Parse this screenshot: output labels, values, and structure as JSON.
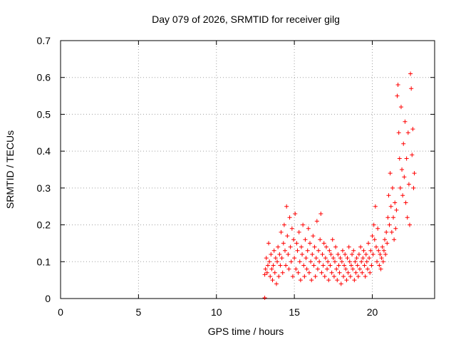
{
  "chart_data": {
    "type": "scatter",
    "title": "Day 079 of 2026, SRMTID for receiver gilg",
    "xlabel": "GPS time / hours",
    "ylabel": "SRMTID / TECUs",
    "xlim": [
      0,
      24
    ],
    "ylim": [
      0,
      0.7
    ],
    "xticks": [
      0,
      5,
      10,
      15,
      20
    ],
    "xtick_labels": [
      "0",
      "5",
      "10",
      "15",
      "20"
    ],
    "yticks": [
      0,
      0.1,
      0.2,
      0.3,
      0.4,
      0.5,
      0.6,
      0.7
    ],
    "ytick_labels": [
      "0",
      "0.1",
      "0.2",
      "0.3",
      "0.4",
      "0.5",
      "0.6",
      "0.7"
    ],
    "grid": true,
    "marker": "plus",
    "color": "#ff0000",
    "series": [
      {
        "name": "SRMTID",
        "x": [
          13.1,
          13.1,
          13.15,
          13.2,
          13.25,
          13.3,
          13.35,
          13.4,
          13.45,
          13.5,
          13.55,
          13.6,
          13.65,
          13.7,
          13.75,
          13.8,
          13.85,
          13.9,
          13.95,
          14.0,
          14.05,
          14.1,
          14.15,
          14.2,
          14.25,
          14.3,
          14.35,
          14.4,
          14.45,
          14.5,
          14.55,
          14.6,
          14.65,
          14.7,
          14.75,
          14.8,
          14.85,
          14.9,
          14.95,
          15.0,
          15.05,
          15.1,
          15.15,
          15.2,
          15.25,
          15.3,
          15.35,
          15.4,
          15.45,
          15.5,
          15.55,
          15.6,
          15.65,
          15.7,
          15.75,
          15.8,
          15.85,
          15.9,
          15.95,
          16.0,
          16.05,
          16.1,
          16.15,
          16.2,
          16.25,
          16.3,
          16.35,
          16.4,
          16.45,
          16.5,
          16.55,
          16.6,
          16.65,
          16.7,
          16.75,
          16.8,
          16.85,
          16.9,
          16.95,
          17.0,
          17.05,
          17.1,
          17.15,
          17.2,
          17.25,
          17.3,
          17.35,
          17.4,
          17.45,
          17.5,
          17.55,
          17.6,
          17.65,
          17.7,
          17.75,
          17.8,
          17.85,
          17.9,
          17.95,
          18.0,
          18.05,
          18.1,
          18.15,
          18.2,
          18.25,
          18.3,
          18.35,
          18.4,
          18.45,
          18.5,
          18.55,
          18.6,
          18.65,
          18.7,
          18.75,
          18.8,
          18.85,
          18.9,
          18.95,
          19.0,
          19.05,
          19.1,
          19.15,
          19.2,
          19.25,
          19.3,
          19.35,
          19.4,
          19.45,
          19.5,
          19.55,
          19.6,
          19.65,
          19.7,
          19.75,
          19.8,
          19.85,
          19.9,
          19.95,
          20.0,
          20.05,
          20.1,
          20.15,
          20.2,
          20.25,
          20.3,
          20.35,
          20.4,
          20.45,
          20.5,
          20.55,
          20.6,
          20.65,
          20.7,
          20.75,
          20.8,
          20.85,
          20.9,
          20.95,
          21.0,
          21.05,
          21.1,
          21.15,
          21.2,
          21.25,
          21.3,
          21.35,
          21.4,
          21.45,
          21.5,
          21.55,
          21.6,
          21.65,
          21.7,
          21.75,
          21.8,
          21.85,
          21.9,
          21.95,
          22.0,
          22.05,
          22.1,
          22.15,
          22.2,
          22.25,
          22.3,
          22.35,
          22.4,
          22.45,
          22.5,
          22.55,
          22.6,
          22.65,
          22.7
        ],
        "y": [
          0.002,
          0.065,
          0.08,
          0.11,
          0.07,
          0.09,
          0.15,
          0.1,
          0.06,
          0.12,
          0.08,
          0.05,
          0.09,
          0.13,
          0.07,
          0.11,
          0.04,
          0.1,
          0.14,
          0.06,
          0.12,
          0.09,
          0.18,
          0.11,
          0.07,
          0.15,
          0.2,
          0.13,
          0.09,
          0.25,
          0.17,
          0.12,
          0.08,
          0.22,
          0.14,
          0.1,
          0.19,
          0.06,
          0.16,
          0.11,
          0.23,
          0.08,
          0.15,
          0.13,
          0.07,
          0.18,
          0.1,
          0.05,
          0.14,
          0.12,
          0.2,
          0.09,
          0.06,
          0.16,
          0.11,
          0.08,
          0.13,
          0.19,
          0.07,
          0.15,
          0.1,
          0.05,
          0.12,
          0.17,
          0.09,
          0.14,
          0.06,
          0.11,
          0.21,
          0.08,
          0.13,
          0.1,
          0.16,
          0.23,
          0.07,
          0.12,
          0.09,
          0.15,
          0.06,
          0.11,
          0.14,
          0.08,
          0.1,
          0.05,
          0.13,
          0.09,
          0.12,
          0.07,
          0.16,
          0.11,
          0.06,
          0.1,
          0.14,
          0.08,
          0.05,
          0.12,
          0.09,
          0.07,
          0.11,
          0.04,
          0.1,
          0.13,
          0.06,
          0.09,
          0.12,
          0.08,
          0.05,
          0.11,
          0.07,
          0.14,
          0.1,
          0.06,
          0.09,
          0.12,
          0.08,
          0.13,
          0.05,
          0.1,
          0.07,
          0.11,
          0.09,
          0.06,
          0.12,
          0.08,
          0.14,
          0.1,
          0.07,
          0.11,
          0.13,
          0.09,
          0.06,
          0.12,
          0.1,
          0.08,
          0.15,
          0.11,
          0.07,
          0.13,
          0.09,
          0.17,
          0.12,
          0.2,
          0.16,
          0.25,
          0.14,
          0.1,
          0.19,
          0.13,
          0.09,
          0.12,
          0.08,
          0.11,
          0.14,
          0.1,
          0.13,
          0.16,
          0.12,
          0.18,
          0.15,
          0.22,
          0.28,
          0.2,
          0.34,
          0.25,
          0.18,
          0.3,
          0.22,
          0.16,
          0.26,
          0.19,
          0.24,
          0.55,
          0.58,
          0.45,
          0.38,
          0.3,
          0.52,
          0.35,
          0.28,
          0.42,
          0.33,
          0.48,
          0.26,
          0.38,
          0.22,
          0.45,
          0.31,
          0.2,
          0.61,
          0.57,
          0.39,
          0.46,
          0.3,
          0.34
        ]
      }
    ]
  }
}
